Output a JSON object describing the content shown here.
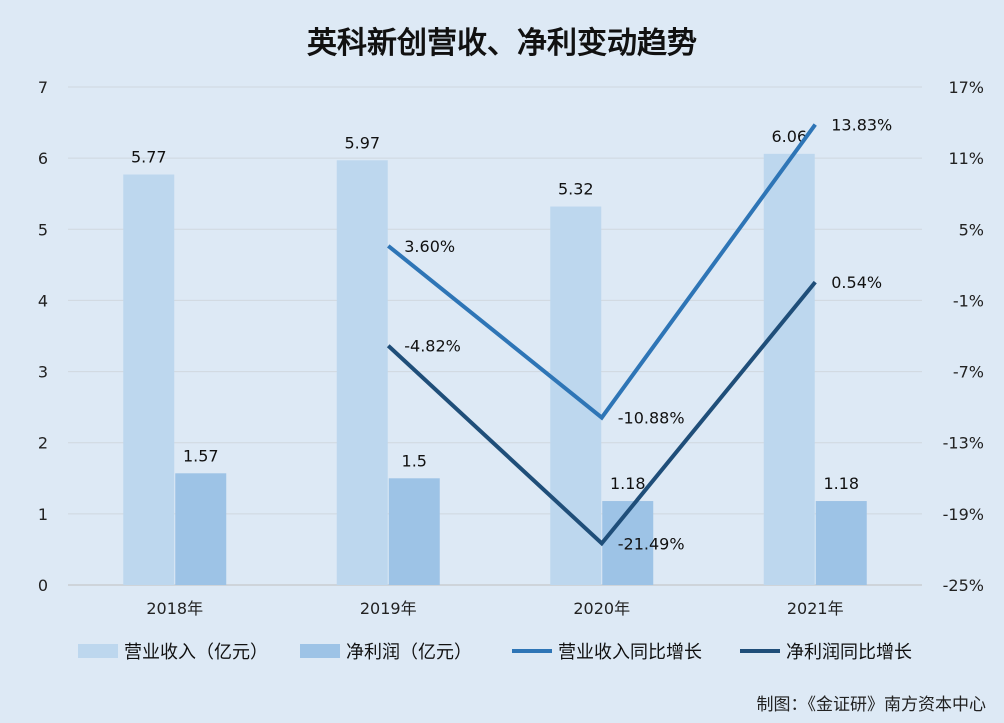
{
  "chart_data": {
    "type": "bar",
    "title": "英科新创营收、净利变动趋势",
    "categories": [
      "2018年",
      "2019年",
      "2020年",
      "2021年"
    ],
    "left_axis": {
      "min": 0,
      "max": 7,
      "ticks": [
        "0",
        "1",
        "2",
        "3",
        "4",
        "5",
        "6",
        "7"
      ]
    },
    "right_axis": {
      "min": -25,
      "max": 17,
      "ticks": [
        "-25%",
        "-19%",
        "-13%",
        "-7%",
        "-1%",
        "5%",
        "11%",
        "17%"
      ]
    },
    "bar_series": [
      {
        "name": "营业收入（亿元）",
        "color": "#bdd7ee",
        "values": [
          5.77,
          5.97,
          5.32,
          6.06
        ],
        "labels": [
          "5.77",
          "5.97",
          "5.32",
          "6.06"
        ]
      },
      {
        "name": "净利润（亿元）",
        "color": "#9dc3e6",
        "values": [
          1.57,
          1.5,
          1.18,
          1.18
        ],
        "labels": [
          "1.57",
          "1.5",
          "1.18",
          "1.18"
        ]
      }
    ],
    "line_series": [
      {
        "name": "营业收入同比增长",
        "color": "#2e75b6",
        "values": [
          null,
          3.6,
          -10.88,
          13.83
        ],
        "labels": [
          "",
          "3.60%",
          "-10.88%",
          "13.83%"
        ]
      },
      {
        "name": "净利润同比增长",
        "color": "#1f4e79",
        "values": [
          null,
          -4.82,
          -21.49,
          0.54
        ],
        "labels": [
          "",
          "-4.82%",
          "-21.49%",
          "0.54%"
        ]
      }
    ],
    "grid": true,
    "legend_position": "bottom"
  },
  "credit": "制图：《金证研》南方资本中心"
}
